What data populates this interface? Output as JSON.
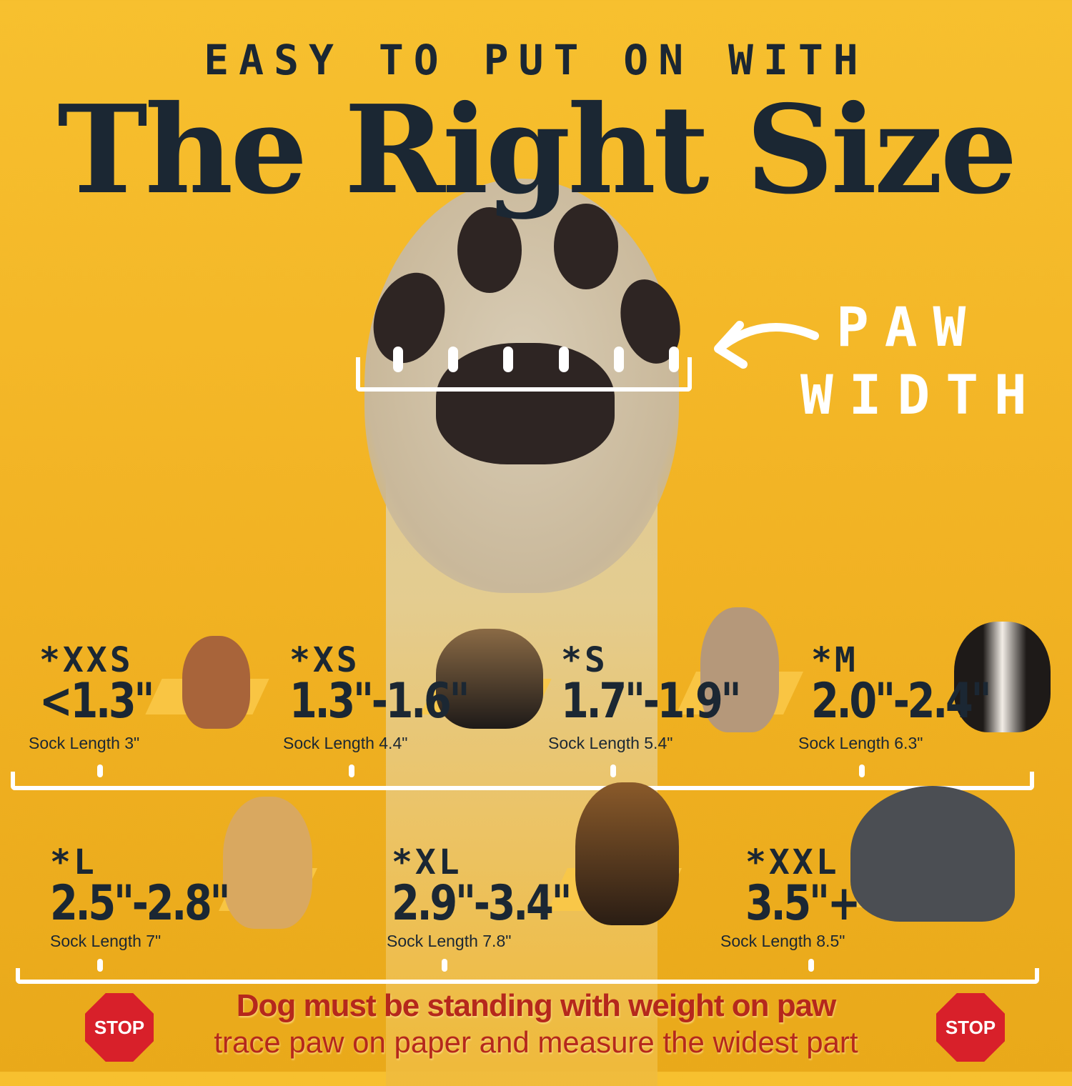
{
  "header": {
    "kicker": "EASY TO PUT ON WITH",
    "title": "The Right Size"
  },
  "paw_label": {
    "line1": "PAW",
    "line2": "WIDTH"
  },
  "sizes": [
    {
      "code": "*XXS",
      "value": "<1.3\"",
      "sock": "Sock Length 3\""
    },
    {
      "code": "*XS",
      "value": "1.3\"-1.6\"",
      "sock": "Sock Length 4.4\""
    },
    {
      "code": "*S",
      "value": "1.7\"-1.9\"",
      "sock": "Sock Length 5.4\""
    },
    {
      "code": "*M",
      "value": "2.0\"-2.4\"",
      "sock": "Sock Length 6.3\""
    },
    {
      "code": "*L",
      "value": "2.5\"-2.8\"",
      "sock": "Sock Length 7\""
    },
    {
      "code": "*XL",
      "value": "2.9\"-3.4\"",
      "sock": "Sock Length 7.8\""
    },
    {
      "code": "*XXL",
      "value": "3.5\"+",
      "sock": "Sock Length 8.5\""
    }
  ],
  "warning": {
    "line1": "Dog must be standing with weight on paw",
    "line2": "trace paw on paper and measure the widest part",
    "stop_label": "STOP"
  },
  "colors": {
    "background": "#f2b324",
    "text": "#1b2733",
    "warning": "#b5281c",
    "stop": "#d8202a"
  }
}
